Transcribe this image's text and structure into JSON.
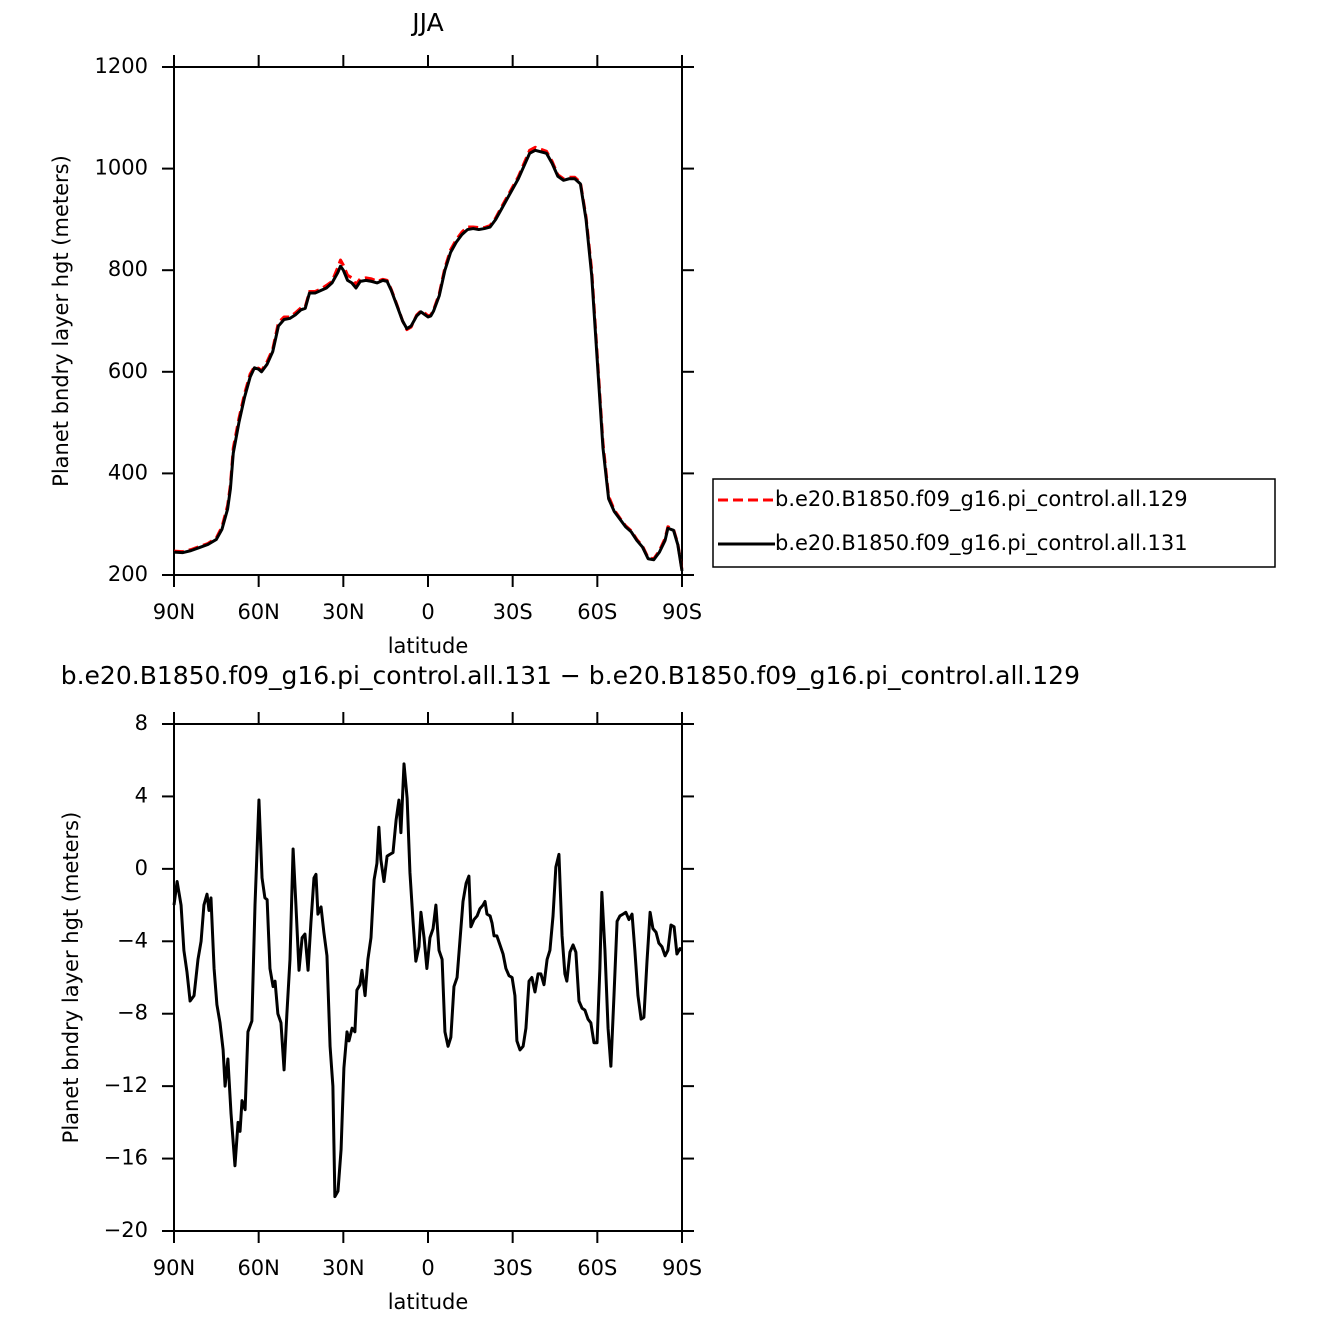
{
  "chart_data": [
    {
      "type": "line",
      "title": "JJA",
      "xlabel": "latitude",
      "ylabel": "Planet bndry layer hgt (meters)",
      "xlim": [
        90,
        -90
      ],
      "xticks": [
        {
          "value": 90,
          "label": "90N"
        },
        {
          "value": 60,
          "label": "60N"
        },
        {
          "value": 30,
          "label": "30N"
        },
        0,
        {
          "value": -30,
          "label": "30S"
        },
        {
          "value": -60,
          "label": "60S"
        },
        {
          "value": -90,
          "label": "90S"
        }
      ],
      "ylim": [
        200,
        1200
      ],
      "yticks": [
        200,
        400,
        600,
        800,
        1000,
        1200
      ],
      "legend": "outside-right",
      "x": [
        90,
        87,
        84,
        81,
        78,
        75,
        73,
        71,
        70,
        69,
        67,
        65,
        63,
        61.5,
        60,
        59,
        57,
        55,
        53,
        51,
        49,
        47,
        45,
        43.5,
        42,
        40,
        38,
        36,
        34,
        32,
        31,
        30,
        28.5,
        27,
        25.5,
        24,
        22,
        20,
        18,
        16,
        14.5,
        13,
        11,
        9,
        7.5,
        6,
        4,
        2.5,
        1,
        0,
        -1,
        -2,
        -4,
        -6,
        -8,
        -10,
        -12,
        -14,
        -16,
        -18,
        -20,
        -22,
        -24,
        -26,
        -28,
        -30,
        -32,
        -34,
        -36,
        -38,
        -40,
        -42,
        -44,
        -46,
        -48,
        -50,
        -52,
        -54,
        -56,
        -58,
        -60,
        -62,
        -64,
        -66,
        -68,
        -70,
        -72,
        -74,
        -76,
        -78,
        -80,
        -82,
        -84,
        -85,
        -87,
        -88.5,
        -90
      ],
      "series": [
        {
          "name": "b.e20.B1850.f09_g16.pi_control.all.129",
          "color": "#ff0000",
          "dash": true,
          "values": [
            247,
            246,
            250,
            256,
            262,
            273,
            295,
            337,
            378,
            450,
            508,
            557,
            596,
            610,
            607,
            602,
            620,
            645,
            697,
            708,
            708,
            716,
            726,
            728,
            758,
            758,
            763,
            770,
            778,
            805,
            820,
            810,
            790,
            785,
            772,
            783,
            785,
            783,
            778,
            782,
            780,
            762,
            732,
            700,
            683,
            688,
            712,
            720,
            715,
            710,
            712,
            722,
            754,
            805,
            840,
            860,
            875,
            885,
            885,
            884,
            884,
            888,
            903,
            924,
            944,
            964,
            984,
            1010,
            1036,
            1042,
            1038,
            1034,
            1014,
            988,
            980,
            983,
            983,
            973,
            905,
            800,
            630,
            460,
            355,
            328,
            312,
            297,
            287,
            270,
            257,
            234,
            232,
            248,
            272,
            295,
            290,
            262,
            210
          ]
        },
        {
          "name": "b.e20.B1850.f09_g16.pi_control.all.131",
          "color": "#000000",
          "dash": false,
          "values": [
            245,
            244,
            248,
            254,
            260,
            270,
            290,
            330,
            370,
            440,
            500,
            550,
            590,
            608,
            605,
            600,
            615,
            640,
            690,
            703,
            705,
            712,
            722,
            725,
            755,
            755,
            760,
            765,
            775,
            795,
            808,
            800,
            780,
            775,
            765,
            778,
            780,
            778,
            775,
            780,
            778,
            760,
            730,
            700,
            685,
            690,
            710,
            718,
            712,
            708,
            710,
            720,
            750,
            800,
            835,
            855,
            870,
            880,
            882,
            880,
            882,
            885,
            900,
            920,
            940,
            960,
            980,
            1005,
            1030,
            1036,
            1033,
            1030,
            1010,
            985,
            977,
            980,
            980,
            970,
            900,
            790,
            620,
            450,
            350,
            325,
            310,
            295,
            285,
            268,
            255,
            232,
            230,
            245,
            268,
            292,
            288,
            260,
            208
          ]
        }
      ]
    },
    {
      "type": "line",
      "title": "b.e20.B1850.f09_g16.pi_control.all.131 − b.e20.B1850.f09_g16.pi_control.all.129",
      "xlabel": "latitude",
      "ylabel": "Planet bndry layer hgt (meters)",
      "xlim": [
        90,
        -90
      ],
      "xticks": [
        {
          "value": 90,
          "label": "90N"
        },
        {
          "value": 60,
          "label": "60N"
        },
        {
          "value": 30,
          "label": "30N"
        },
        0,
        {
          "value": -30,
          "label": "30S"
        },
        {
          "value": -60,
          "label": "60S"
        },
        {
          "value": -90,
          "label": "90S"
        }
      ],
      "ylim": [
        -20,
        8
      ],
      "yticks": [
        {
          "value": -20,
          "label": "−20"
        },
        {
          "value": -16,
          "label": "−16"
        },
        {
          "value": -12,
          "label": "−12"
        },
        {
          "value": -8,
          "label": "−8"
        },
        {
          "value": -4,
          "label": "−4"
        },
        0,
        4,
        8
      ],
      "x": [
        90,
        88.9,
        87.5,
        86.5,
        85.4,
        84.3,
        82.9,
        81.5,
        80.4,
        79.4,
        78.3,
        77.6,
        76.9,
        75.8,
        74.8,
        73.7,
        72.6,
        71.9,
        70.9,
        69.8,
        68.4,
        67.3,
        66.6,
        65.9,
        64.8,
        63.8,
        62.4,
        61.3,
        59.9,
        58.8,
        57.8,
        57.0,
        56.0,
        54.9,
        54.2,
        53.2,
        52.1,
        51.0,
        50.0,
        48.9,
        47.8,
        46.8,
        45.7,
        44.6,
        43.6,
        42.5,
        41.5,
        40.4,
        39.7,
        39.0,
        37.9,
        36.9,
        35.8,
        34.7,
        33.7,
        33.0,
        31.9,
        30.8,
        29.8,
        28.7,
        28.0,
        26.9,
        25.9,
        25.2,
        24.1,
        23.4,
        22.3,
        21.3,
        20.2,
        19.1,
        18.1,
        17.4,
        16.7,
        15.6,
        14.5,
        13.5,
        12.4,
        11.3,
        10.3,
        9.6,
        8.5,
        7.4,
        6.4,
        5.3,
        4.3,
        3.2,
        2.5,
        1.4,
        0.4,
        -0.7,
        -1.8,
        -2.8,
        -3.9,
        -5.0,
        -6.0,
        -7.1,
        -8.1,
        -9.2,
        -10.3,
        -11.3,
        -12.4,
        -13.5,
        -14.5,
        -15.2,
        -16.3,
        -17.4,
        -18.4,
        -19.5,
        -20.2,
        -20.9,
        -22.0,
        -22.7,
        -23.4,
        -24.4,
        -25.5,
        -26.6,
        -27.6,
        -28.7,
        -29.8,
        -30.8,
        -31.5,
        -32.6,
        -33.7,
        -34.7,
        -35.8,
        -36.8,
        -37.9,
        -39.0,
        -40.0,
        -41.1,
        -42.2,
        -43.2,
        -44.3,
        -45.3,
        -46.4,
        -47.5,
        -48.5,
        -49.2,
        -50.3,
        -51.4,
        -52.4,
        -53.5,
        -54.6,
        -55.6,
        -56.7,
        -57.7,
        -58.8,
        -59.9,
        -60.9,
        -61.6,
        -62.7,
        -63.8,
        -64.8,
        -65.9,
        -67.0,
        -68.0,
        -69.1,
        -70.1,
        -71.2,
        -72.3,
        -73.3,
        -74.4,
        -75.5,
        -76.5,
        -77.6,
        -78.7,
        -79.7,
        -80.8,
        -81.8,
        -82.9,
        -84.0,
        -85.0,
        -86.1,
        -87.2,
        -88.2,
        -89.3,
        -90
      ],
      "series": [
        {
          "color": "#000000",
          "dash": false,
          "values": [
            -2,
            -0.7,
            -2,
            -4.5,
            -5.7,
            -7.3,
            -7,
            -5,
            -4,
            -2,
            -1.4,
            -2.3,
            -1.6,
            -5.5,
            -7.5,
            -8.5,
            -10,
            -12,
            -10.5,
            -13.5,
            -16.4,
            -14,
            -14.5,
            -12.8,
            -13.3,
            -9,
            -8.4,
            -2,
            3.8,
            -0.5,
            -1.6,
            -1.7,
            -5.5,
            -6.5,
            -6.2,
            -8,
            -8.5,
            -11.1,
            -8,
            -5,
            1.1,
            -2,
            -5.6,
            -3.8,
            -3.6,
            -5.6,
            -3,
            -0.5,
            -0.3,
            -2.5,
            -2.1,
            -3.5,
            -4.8,
            -9.8,
            -12,
            -18.1,
            -17.8,
            -15.5,
            -11,
            -9,
            -9.5,
            -8.8,
            -9,
            -6.7,
            -6.4,
            -5.6,
            -7,
            -5,
            -3.8,
            -0.6,
            0.3,
            2.3,
            0.5,
            -0.7,
            0.7,
            0.8,
            0.9,
            2.7,
            3.8,
            2,
            5.8,
            3.9,
            -0.2,
            -2.9,
            -5.1,
            -4.3,
            -2.4,
            -3.8,
            -5.5,
            -3.8,
            -3.3,
            -2,
            -4.5,
            -5,
            -9,
            -9.8,
            -9.3,
            -6.5,
            -6,
            -4,
            -1.8,
            -0.8,
            -0.4,
            -3.2,
            -2.8,
            -2.6,
            -2.2,
            -2,
            -1.8,
            -2.5,
            -2.6,
            -3,
            -3.7,
            -3.7,
            -4.2,
            -4.7,
            -5.5,
            -5.9,
            -6,
            -7,
            -9.5,
            -10,
            -9.8,
            -8.8,
            -6.2,
            -6,
            -6.8,
            -5.8,
            -5.8,
            -6.4,
            -5,
            -4.5,
            -2.6,
            0.1,
            0.8,
            -3.7,
            -5.8,
            -6.2,
            -4.6,
            -4.2,
            -4.6,
            -7.3,
            -7.7,
            -7.8,
            -8.3,
            -8.5,
            -9.6,
            -9.6,
            -5.5,
            -1.3,
            -4.5,
            -8.8,
            -10.9,
            -7,
            -2.9,
            -2.6,
            -2.5,
            -2.4,
            -2.8,
            -2.5,
            -4.5,
            -7,
            -8.3,
            -8.2,
            -5.1,
            -2.4,
            -3.3,
            -3.5,
            -4.1,
            -4.3,
            -4.8,
            -4.5,
            -3.1,
            -3.2,
            -4.7,
            -4.4,
            -4.5
          ]
        }
      ]
    }
  ]
}
